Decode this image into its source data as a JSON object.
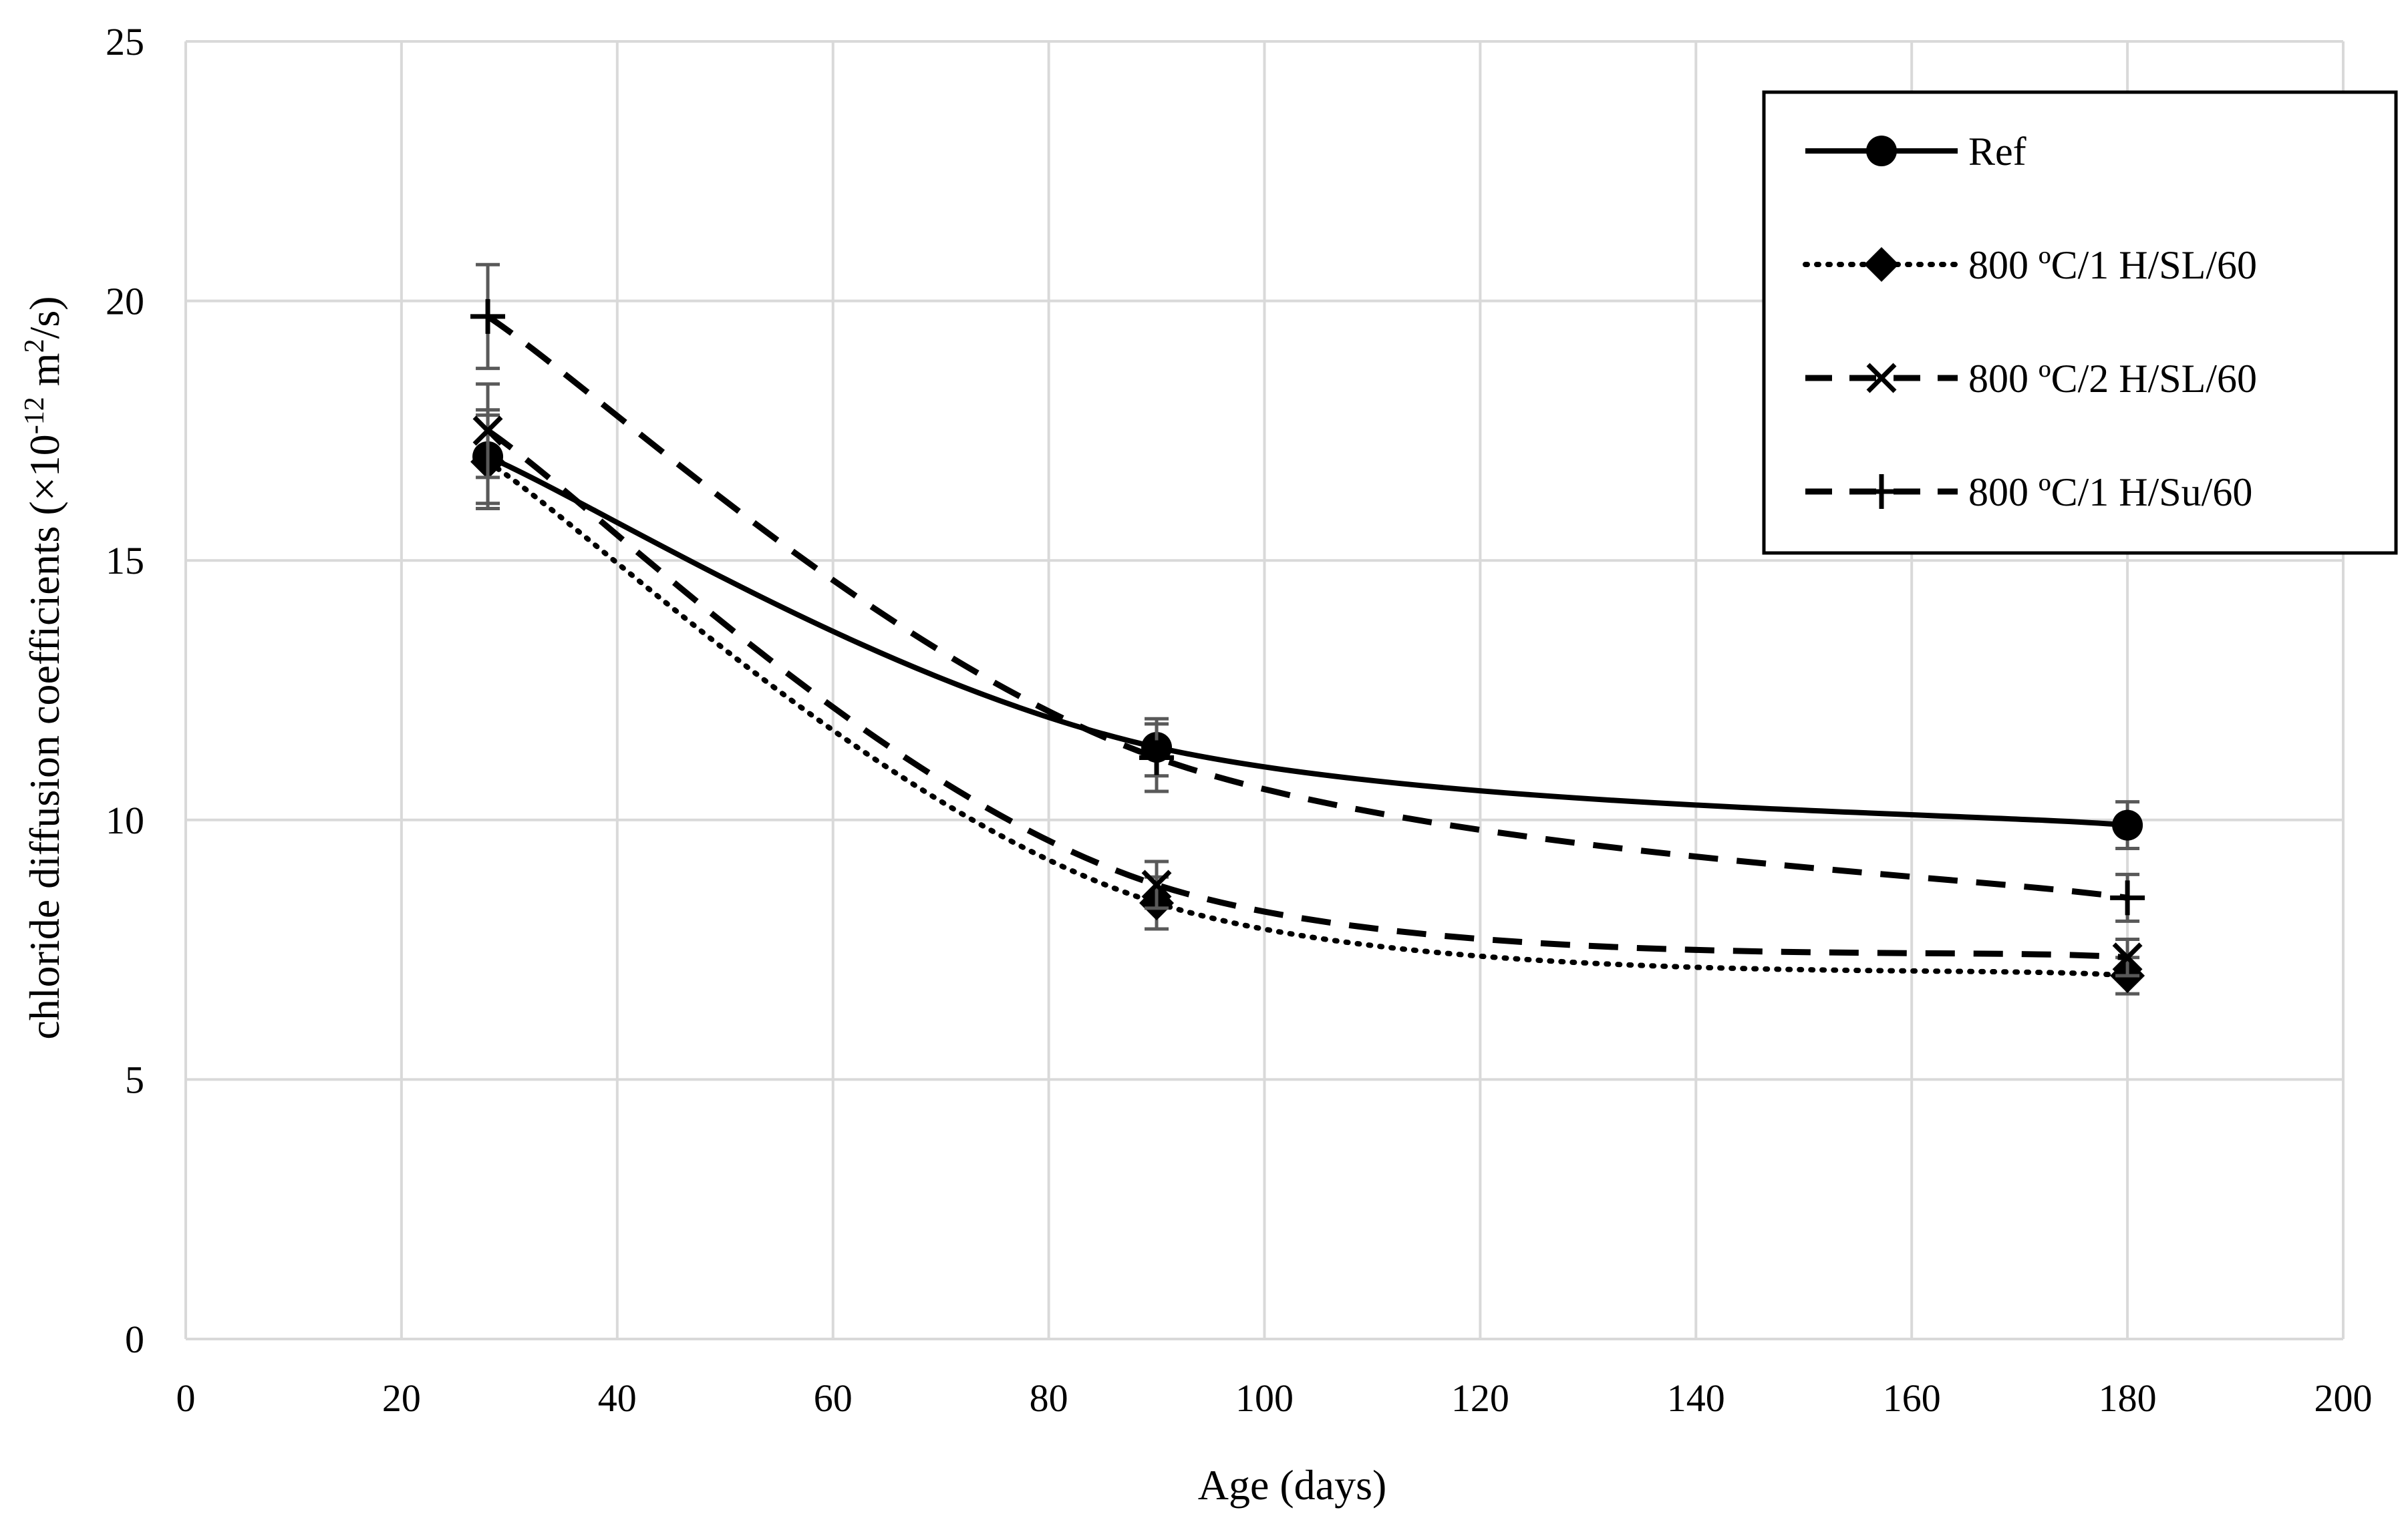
{
  "chart_data": {
    "type": "line",
    "title": "",
    "xlabel": "Age (days)",
    "ylabel": "chloride diffusion coefficients (×10",
    "ylabel_sup1": "-12",
    "ylabel_mid": " m",
    "ylabel_sup2": "2",
    "ylabel_end": "/s)",
    "xlim": [
      0,
      200
    ],
    "ylim": [
      0,
      25
    ],
    "xticks": [
      0,
      20,
      40,
      60,
      80,
      100,
      120,
      140,
      160,
      180,
      200
    ],
    "yticks": [
      0,
      5,
      10,
      15,
      20,
      25
    ],
    "grid": true,
    "legend_position": "top-right",
    "x": [
      28,
      90,
      180
    ],
    "series": [
      {
        "name": "Ref",
        "values": [
          17.0,
          11.4,
          9.9
        ],
        "errors": [
          0.9,
          0.55,
          0.45
        ],
        "line": "solid",
        "marker": "circle"
      },
      {
        "name": "800 ºC/1 H/SL/60",
        "values": [
          16.9,
          8.4,
          7.0
        ],
        "errors": [
          0.9,
          0.5,
          0.35
        ],
        "line": "dotted",
        "marker": "diamond"
      },
      {
        "name": "800 ºC/2 H/SL/60",
        "values": [
          17.5,
          8.75,
          7.35
        ],
        "errors": [
          0.9,
          0.45,
          0.35
        ],
        "line": "dashed",
        "marker": "x"
      },
      {
        "name": "800 ºC/1 H/Su/60",
        "values": [
          19.7,
          11.2,
          8.5
        ],
        "errors": [
          1.0,
          0.65,
          0.45
        ],
        "line": "dashed",
        "marker": "plus"
      }
    ]
  },
  "colors": {
    "line": "#000000",
    "grid": "#d9d9d9",
    "error_bar": "#595959"
  }
}
